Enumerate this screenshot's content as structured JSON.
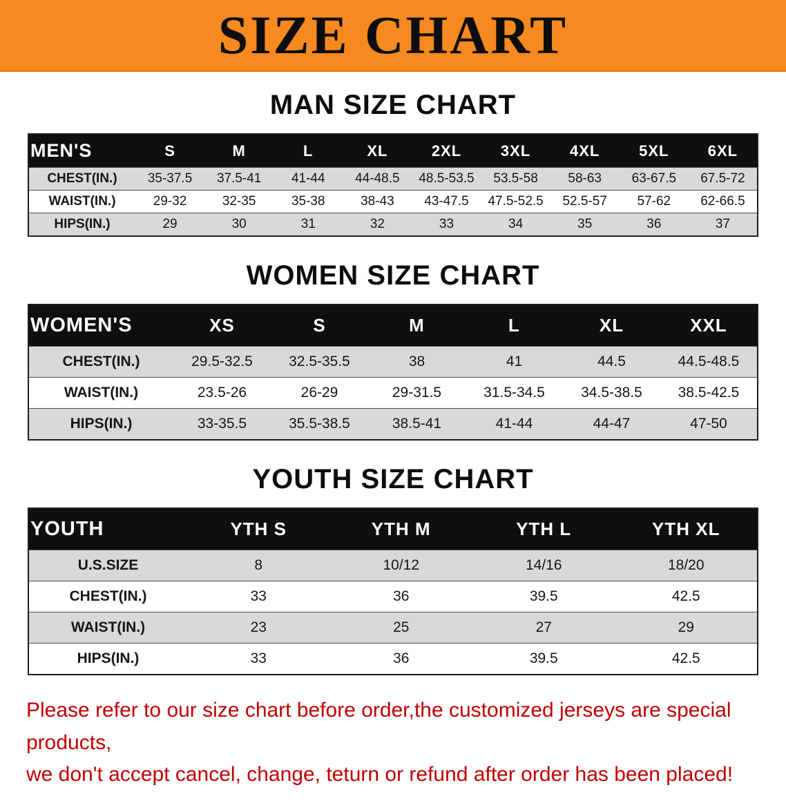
{
  "banner": {
    "title": "SIZE CHART",
    "bg_color": "#f6891f",
    "text_color": "#0d0d0d"
  },
  "sections": [
    {
      "id": "men",
      "heading": "MAN SIZE CHART",
      "table": {
        "header": [
          "MEN'S",
          "S",
          "M",
          "L",
          "XL",
          "2XL",
          "3XL",
          "4XL",
          "5XL",
          "6XL"
        ],
        "rows": [
          [
            "CHEST(IN.)",
            "35-37.5",
            "37.5-41",
            "41-44",
            "44-48.5",
            "48.5-53.5",
            "53.5-58",
            "58-63",
            "63-67.5",
            "67.5-72"
          ],
          [
            "WAIST(IN.)",
            "29-32",
            "32-35",
            "35-38",
            "38-43",
            "43-47.5",
            "47.5-52.5",
            "52.5-57",
            "57-62",
            "62-66.5"
          ],
          [
            "HIPS(IN.)",
            "29",
            "30",
            "31",
            "32",
            "33",
            "34",
            "35",
            "36",
            "37"
          ]
        ]
      }
    },
    {
      "id": "women",
      "heading": "WOMEN SIZE CHART",
      "table": {
        "header": [
          "WOMEN'S",
          "XS",
          "S",
          "M",
          "L",
          "XL",
          "XXL"
        ],
        "rows": [
          [
            "CHEST(IN.)",
            "29.5-32.5",
            "32.5-35.5",
            "38",
            "41",
            "44.5",
            "44.5-48.5"
          ],
          [
            "WAIST(IN.)",
            "23.5-26",
            "26-29",
            "29-31.5",
            "31.5-34.5",
            "34.5-38.5",
            "38.5-42.5"
          ],
          [
            "HIPS(IN.)",
            "33-35.5",
            "35.5-38.5",
            "38.5-41",
            "41-44",
            "44-47",
            "47-50"
          ]
        ]
      }
    },
    {
      "id": "youth",
      "heading": "YOUTH SIZE CHART",
      "table": {
        "header": [
          "YOUTH",
          "YTH S",
          "YTH M",
          "YTH L",
          "YTH XL"
        ],
        "rows": [
          [
            "U.S.SIZE",
            "8",
            "10/12",
            "14/16",
            "18/20"
          ],
          [
            "CHEST(IN.)",
            "33",
            "36",
            "39.5",
            "42.5"
          ],
          [
            "WAIST(IN.)",
            "23",
            "25",
            "27",
            "29"
          ],
          [
            "HIPS(IN.)",
            "33",
            "36",
            "39.5",
            "42.5"
          ]
        ]
      }
    }
  ],
  "disclaimer": {
    "color": "#c00000",
    "line1": "Please refer to our size chart before order,the customized jerseys are special products,",
    "line2": "we don't accept cancel, change, teturn or refund after order has been placed!"
  }
}
